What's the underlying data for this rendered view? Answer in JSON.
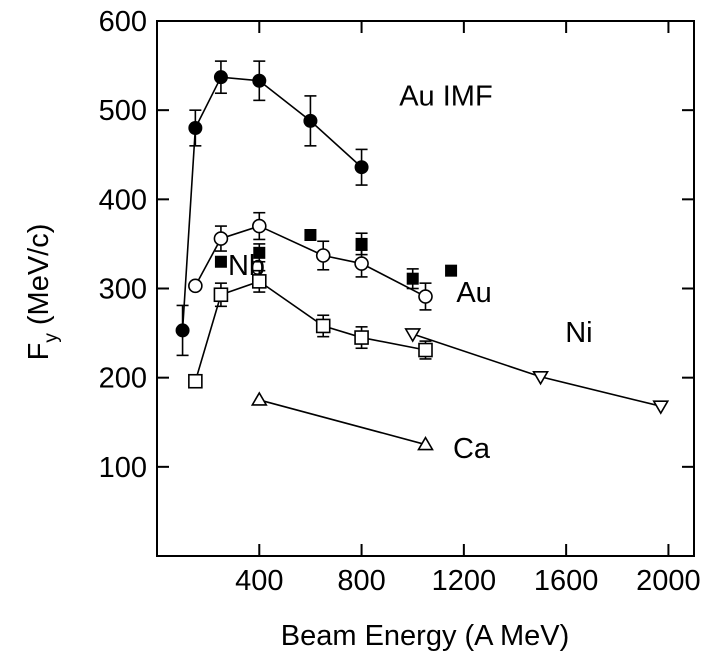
{
  "chart_data": {
    "type": "scatter",
    "xlabel": "Beam Energy (A MeV)",
    "ylabel_main": "F",
    "ylabel_sub": "y",
    "ylabel_rest": " (MeV/c)",
    "xlim": [
      0,
      2100
    ],
    "ylim": [
      0,
      600
    ],
    "xticks": [
      400,
      800,
      1200,
      1600,
      2000
    ],
    "yticks": [
      100,
      200,
      300,
      400,
      500,
      600
    ],
    "grid": false,
    "series": [
      {
        "name": "Au IMF",
        "marker": "filled-circle",
        "line": true,
        "x": [
          100,
          150,
          250,
          400,
          600,
          800
        ],
        "y": [
          253,
          480,
          537,
          533,
          488,
          436
        ],
        "err": [
          28,
          20,
          18,
          22,
          28,
          20
        ]
      },
      {
        "name": "Au",
        "marker": "open-circle",
        "line": true,
        "x": [
          150,
          250,
          400,
          650,
          800,
          1050
        ],
        "y": [
          303,
          356,
          370,
          337,
          328,
          291
        ],
        "err": [
          0,
          14,
          15,
          16,
          15,
          15
        ]
      },
      {
        "name": "",
        "marker": "filled-square",
        "line": false,
        "x": [
          250,
          400,
          600,
          800,
          1000,
          1150
        ],
        "y": [
          330,
          340,
          360,
          350,
          311,
          320
        ],
        "err": [
          0,
          10,
          0,
          12,
          11,
          0
        ]
      },
      {
        "name": "Nb",
        "marker": "open-square",
        "line": true,
        "x": [
          150,
          250,
          400,
          650,
          800,
          1050
        ],
        "y": [
          196,
          293,
          308,
          258,
          245,
          231
        ],
        "err": [
          0,
          13,
          12,
          12,
          12,
          10
        ]
      },
      {
        "name": "Ni",
        "marker": "open-triangle-down",
        "line": true,
        "x": [
          1000,
          1500,
          1970
        ],
        "y": [
          249,
          201,
          168
        ],
        "err": [
          0,
          0,
          0
        ]
      },
      {
        "name": "Ca",
        "marker": "open-triangle-up",
        "line": true,
        "x": [
          400,
          1050
        ],
        "y": [
          175,
          125
        ],
        "err": [
          0,
          0
        ]
      }
    ],
    "annotations": [
      {
        "text": "Au IMF",
        "x": 1130,
        "y": 505
      },
      {
        "text": "Au",
        "x": 1240,
        "y": 285
      },
      {
        "text": "Nb",
        "x": 350,
        "y": 315
      },
      {
        "text": "Ni",
        "x": 1650,
        "y": 240
      },
      {
        "text": "Ca",
        "x": 1230,
        "y": 110
      }
    ]
  }
}
